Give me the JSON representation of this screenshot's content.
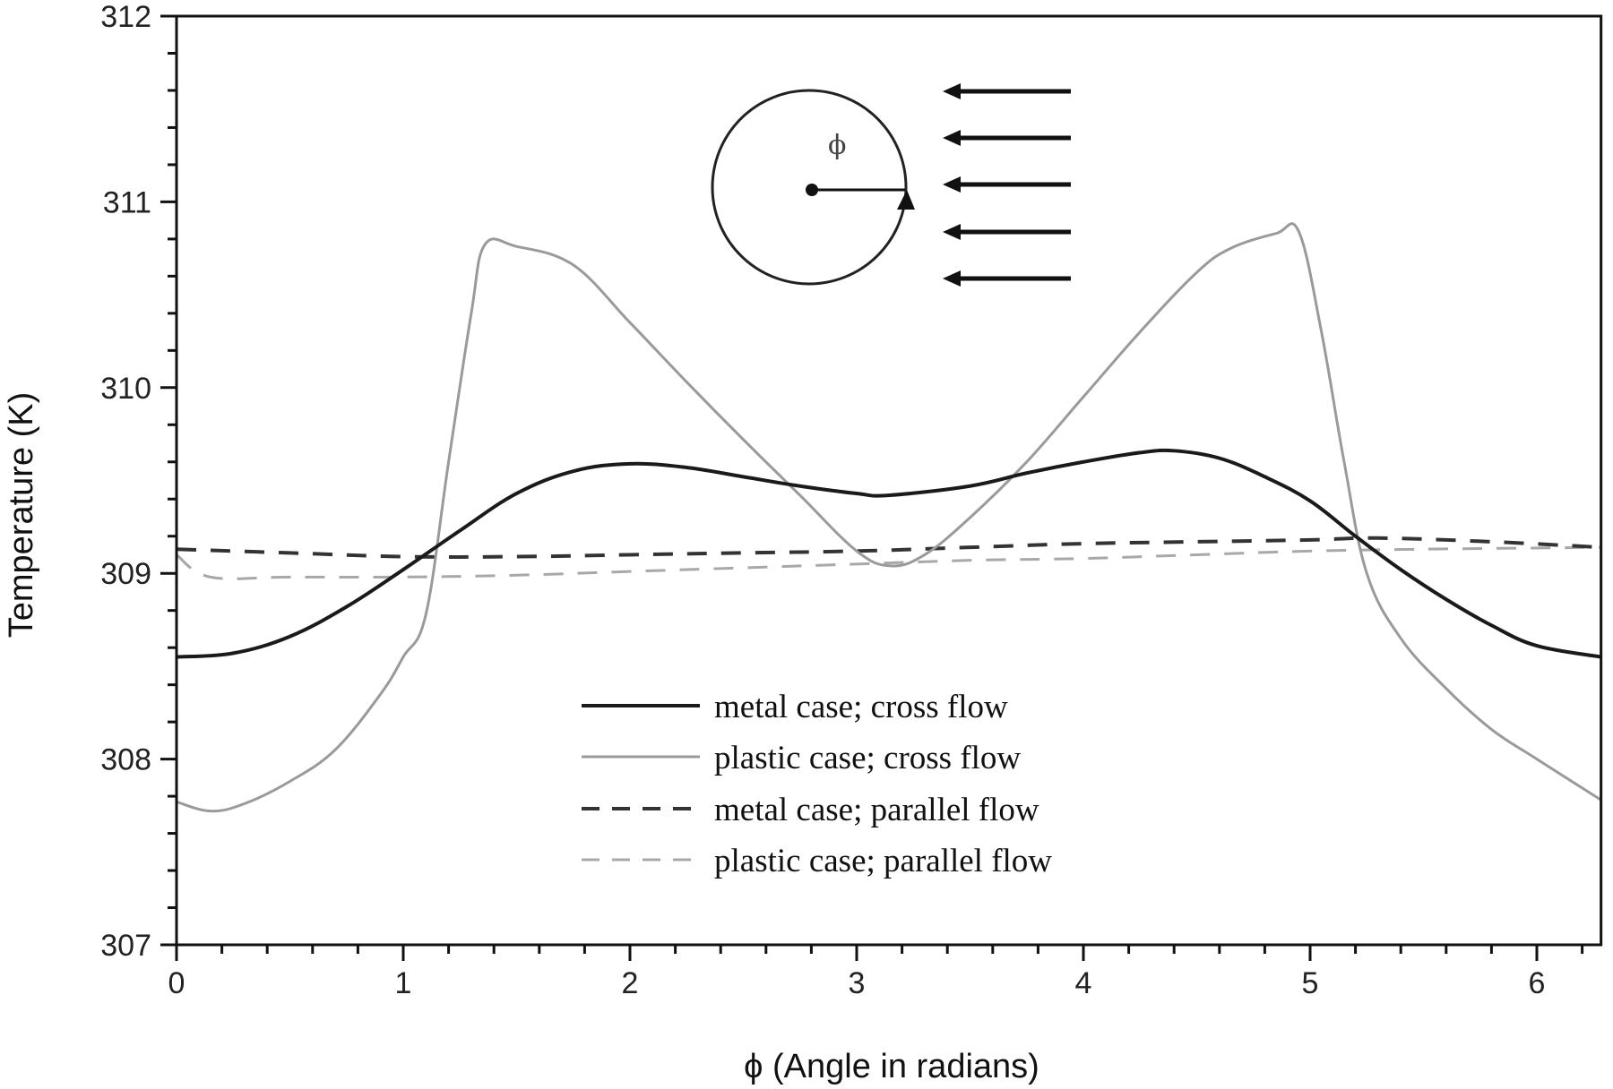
{
  "chart_data": {
    "type": "line",
    "title": "",
    "xlabel": "ϕ (Angle in radians)",
    "ylabel": "Temperature (K)",
    "xlim": [
      0,
      6.2832
    ],
    "ylim": [
      307,
      312
    ],
    "x_ticks": [
      0,
      1,
      2,
      3,
      4,
      5,
      6
    ],
    "y_ticks": [
      307,
      308,
      309,
      310,
      311,
      312
    ],
    "grid": false,
    "legend_position": "lower center (inside plot)",
    "series": [
      {
        "name": "metal case; cross flow",
        "style": "solid",
        "color": "#1a1a1a",
        "width": 4,
        "x": [
          0,
          0.25,
          0.5,
          0.75,
          1.0,
          1.25,
          1.5,
          1.75,
          2.0,
          2.25,
          2.5,
          2.75,
          3.0,
          3.14,
          3.5,
          3.75,
          4.0,
          4.25,
          4.4,
          4.6,
          4.8,
          5.0,
          5.2,
          5.4,
          5.6,
          5.8,
          6.0,
          6.2832
        ],
        "y": [
          308.55,
          308.57,
          308.66,
          308.82,
          309.02,
          309.23,
          309.43,
          309.55,
          309.59,
          309.57,
          309.52,
          309.47,
          309.43,
          309.42,
          309.47,
          309.54,
          309.6,
          309.65,
          309.66,
          309.62,
          309.52,
          309.39,
          309.2,
          309.02,
          308.86,
          308.72,
          308.61,
          308.55
        ]
      },
      {
        "name": "plastic case; cross flow",
        "style": "solid",
        "color": "#9a9a9a",
        "width": 3,
        "x": [
          0,
          0.15,
          0.3,
          0.5,
          0.7,
          0.9,
          1.0,
          1.1,
          1.2,
          1.3,
          1.36,
          1.5,
          1.75,
          2.0,
          2.25,
          2.5,
          2.75,
          3.0,
          3.15,
          3.3,
          3.5,
          3.75,
          4.0,
          4.25,
          4.5,
          4.65,
          4.85,
          4.95,
          5.05,
          5.15,
          5.25,
          5.4,
          5.6,
          5.8,
          6.0,
          6.2832
        ],
        "y": [
          307.77,
          307.72,
          307.76,
          307.88,
          308.05,
          308.35,
          308.55,
          308.78,
          309.6,
          310.4,
          310.77,
          310.76,
          310.66,
          310.35,
          310.03,
          309.72,
          309.42,
          309.12,
          309.04,
          309.1,
          309.3,
          309.6,
          309.95,
          310.3,
          310.62,
          310.75,
          310.83,
          310.84,
          310.3,
          309.6,
          309.0,
          308.65,
          308.38,
          308.16,
          308.0,
          307.78
        ]
      },
      {
        "name": "metal case; parallel flow",
        "style": "dashed",
        "color": "#333333",
        "width": 4,
        "x": [
          0,
          0.5,
          1.0,
          1.5,
          2.0,
          2.5,
          3.0,
          3.5,
          4.0,
          4.5,
          5.0,
          5.3,
          5.8,
          6.2832
        ],
        "y": [
          309.13,
          309.11,
          309.09,
          309.09,
          309.1,
          309.11,
          309.12,
          309.14,
          309.16,
          309.17,
          309.18,
          309.19,
          309.17,
          309.14
        ]
      },
      {
        "name": "plastic case; parallel flow",
        "style": "dashed",
        "color": "#a8a8a8",
        "width": 3,
        "x": [
          0,
          0.15,
          0.5,
          1.0,
          1.5,
          2.0,
          2.5,
          3.0,
          3.5,
          4.0,
          4.5,
          5.0,
          5.5,
          6.2832
        ],
        "y": [
          309.1,
          308.98,
          308.98,
          308.98,
          308.99,
          309.01,
          309.03,
          309.05,
          309.07,
          309.08,
          309.1,
          309.12,
          309.13,
          309.14
        ]
      }
    ],
    "annotations": [
      {
        "type": "inset-diagram",
        "description": "cylinder cross-section with angle ϕ measured from the downstream point, flow arrows pointing left",
        "symbol": "ϕ"
      }
    ]
  },
  "legend": {
    "items": [
      {
        "label": "metal case; cross flow"
      },
      {
        "label": "plastic case; cross flow"
      },
      {
        "label": "metal case; parallel flow"
      },
      {
        "label": "plastic case; parallel flow"
      }
    ]
  },
  "inset": {
    "phi_symbol": "ϕ"
  }
}
